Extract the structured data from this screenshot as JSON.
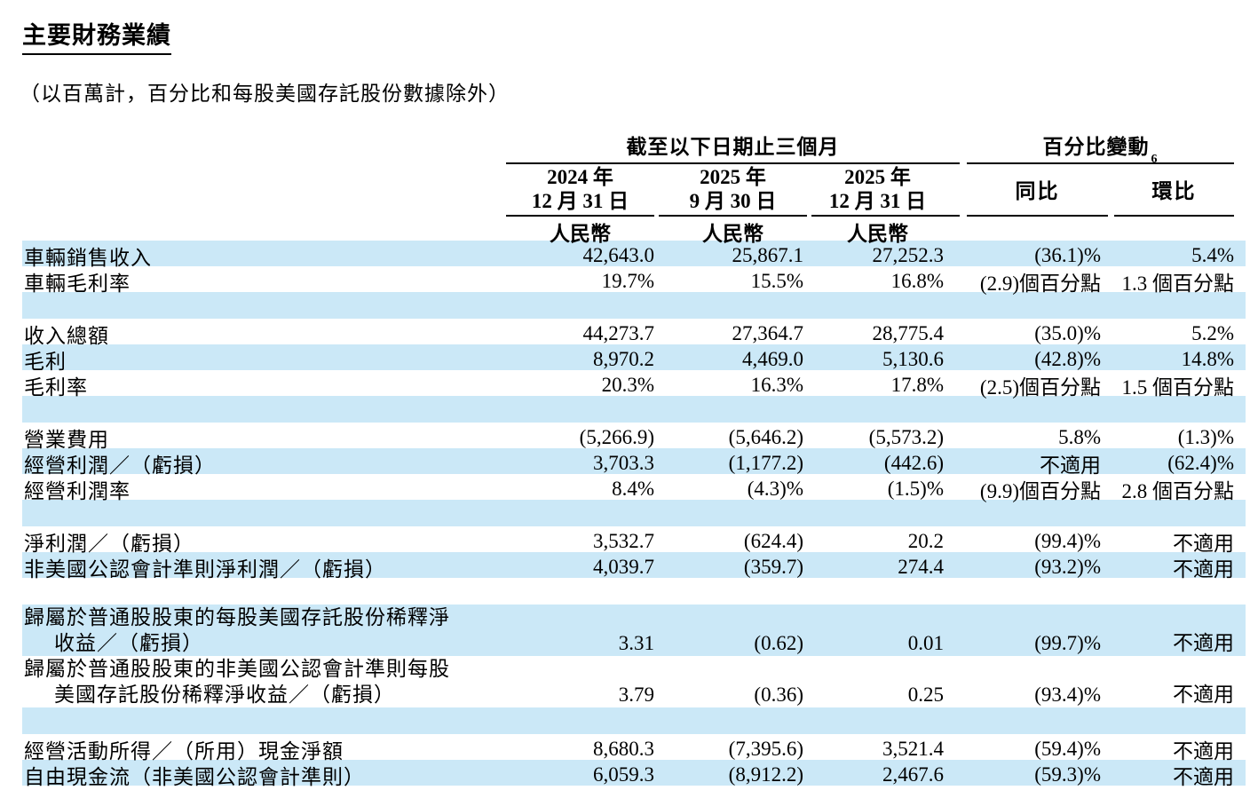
{
  "title": "主要財務業績",
  "subtitle": "（以百萬計，百分比和每股美國存託股份數據除外）",
  "colors": {
    "stripe_blue": "#cbe8f7",
    "text": "#000000",
    "rule": "#000000"
  },
  "table": {
    "group_headers": {
      "period": "截至以下日期止三個月",
      "change": "百分比變動",
      "change_footnote": "6"
    },
    "date_columns": [
      {
        "year": "2024 年",
        "date": "12 月 31 日",
        "currency": "人民幣"
      },
      {
        "year": "2025 年",
        "date": "9 月 30 日",
        "currency": "人民幣"
      },
      {
        "year": "2025 年",
        "date": "12 月 31 日",
        "currency": "人民幣"
      }
    ],
    "change_columns": [
      {
        "label": "同比"
      },
      {
        "label": "環比"
      }
    ],
    "rows": [
      {
        "label": "車輛銷售收入",
        "values": [
          "42,643.0",
          "25,867.1",
          "27,252.3",
          "(36.1)%",
          "5.4%"
        ],
        "shade": true
      },
      {
        "label": "車輛毛利率",
        "values": [
          "19.7%",
          "15.5%",
          "16.8%",
          "(2.9)個百分點",
          "1.3 個百分點"
        ],
        "shade": false
      },
      {
        "spacer": true,
        "shade": true
      },
      {
        "label": "收入總額",
        "values": [
          "44,273.7",
          "27,364.7",
          "28,775.4",
          "(35.0)%",
          "5.2%"
        ],
        "shade": false
      },
      {
        "label": "毛利",
        "values": [
          "8,970.2",
          "4,469.0",
          "5,130.6",
          "(42.8)%",
          "14.8%"
        ],
        "shade": true
      },
      {
        "label": "毛利率",
        "values": [
          "20.3%",
          "16.3%",
          "17.8%",
          "(2.5)個百分點",
          "1.5 個百分點"
        ],
        "shade": false
      },
      {
        "spacer": true,
        "shade": true
      },
      {
        "label": "營業費用",
        "values": [
          "(5,266.9)",
          "(5,646.2)",
          "(5,573.2)",
          "5.8%",
          "(1.3)%"
        ],
        "shade": false
      },
      {
        "label": "經營利潤／（虧損）",
        "values": [
          "3,703.3",
          "(1,177.2)",
          "(442.6)",
          "不適用",
          "(62.4)%"
        ],
        "shade": true
      },
      {
        "label": "經營利潤率",
        "values": [
          "8.4%",
          "(4.3)%",
          "(1.5)%",
          "(9.9)個百分點",
          "2.8 個百分點"
        ],
        "shade": false
      },
      {
        "spacer": true,
        "shade": true
      },
      {
        "label": "淨利潤／（虧損）",
        "values": [
          "3,532.7",
          "(624.4)",
          "20.2",
          "(99.4)%",
          "不適用"
        ],
        "shade": false
      },
      {
        "label": "非美國公認會計準則淨利潤／（虧損）",
        "values": [
          "4,039.7",
          "(359.7)",
          "274.4",
          "(93.2)%",
          "不適用"
        ],
        "shade": true
      },
      {
        "spacer": true,
        "shade": false
      },
      {
        "label": "歸屬於普通股股東的每股美國存託股份稀釋淨",
        "label2": "收益／（虧損）",
        "values": [
          "3.31",
          "(0.62)",
          "0.01",
          "(99.7)%",
          "不適用"
        ],
        "shade": true,
        "two_line": true
      },
      {
        "label": "歸屬於普通股股東的非美國公認會計準則每股",
        "label2": "美國存託股份稀釋淨收益／（虧損）",
        "values": [
          "3.79",
          "(0.36)",
          "0.25",
          "(93.4)%",
          "不適用"
        ],
        "shade": false,
        "two_line": true
      },
      {
        "spacer": true,
        "shade": true
      },
      {
        "label": "經營活動所得／（所用）現金淨額",
        "values": [
          "8,680.3",
          "(7,395.6)",
          "3,521.4",
          "(59.4)%",
          "不適用"
        ],
        "shade": false
      },
      {
        "label": "自由現金流（非美國公認會計準則）",
        "values": [
          "6,059.3",
          "(8,912.2)",
          "2,467.6",
          "(59.3)%",
          "不適用"
        ],
        "shade": true
      }
    ]
  }
}
